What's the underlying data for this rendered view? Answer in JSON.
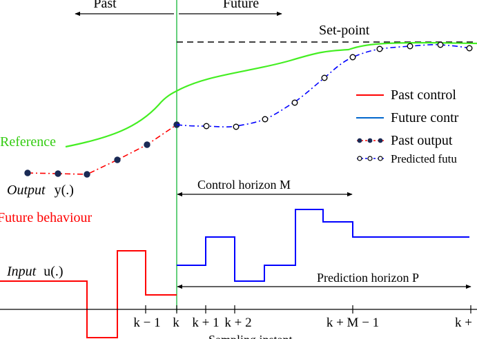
{
  "labels": {
    "past": "Past",
    "future": "Future",
    "setpoint": "Set-point",
    "reference": "Reference",
    "output_word": "Output",
    "output_sym": "y(.)",
    "future_behaviour": "Future behaviour",
    "input_word": "Input",
    "input_sym": "u(.)",
    "control_horizon": "Control horizon M",
    "prediction_horizon": "Prediction horizon P",
    "sampling_instant": "Sampling instant"
  },
  "legend": [
    {
      "label": "Past control",
      "kind": "line",
      "color": "#ff0000"
    },
    {
      "label": "Future contr",
      "kind": "line",
      "color": "#0066cc"
    },
    {
      "label": "Past output",
      "kind": "dots-filled",
      "color": "#ff0000"
    },
    {
      "label": "Predicted futu",
      "kind": "dots-open",
      "color": "#0000ff"
    }
  ],
  "ticks": [
    "k − 1",
    "k",
    "k + 1",
    "k + 2",
    "k + M − 1",
    "k +"
  ],
  "colors": {
    "reference": "#44ee22",
    "past": "#ff0000",
    "future": "#0000ff",
    "divider": "#22bb44",
    "setpoint": "#000000",
    "reference_label": "#33cc11",
    "future_behaviour_label": "#ff0000"
  }
}
